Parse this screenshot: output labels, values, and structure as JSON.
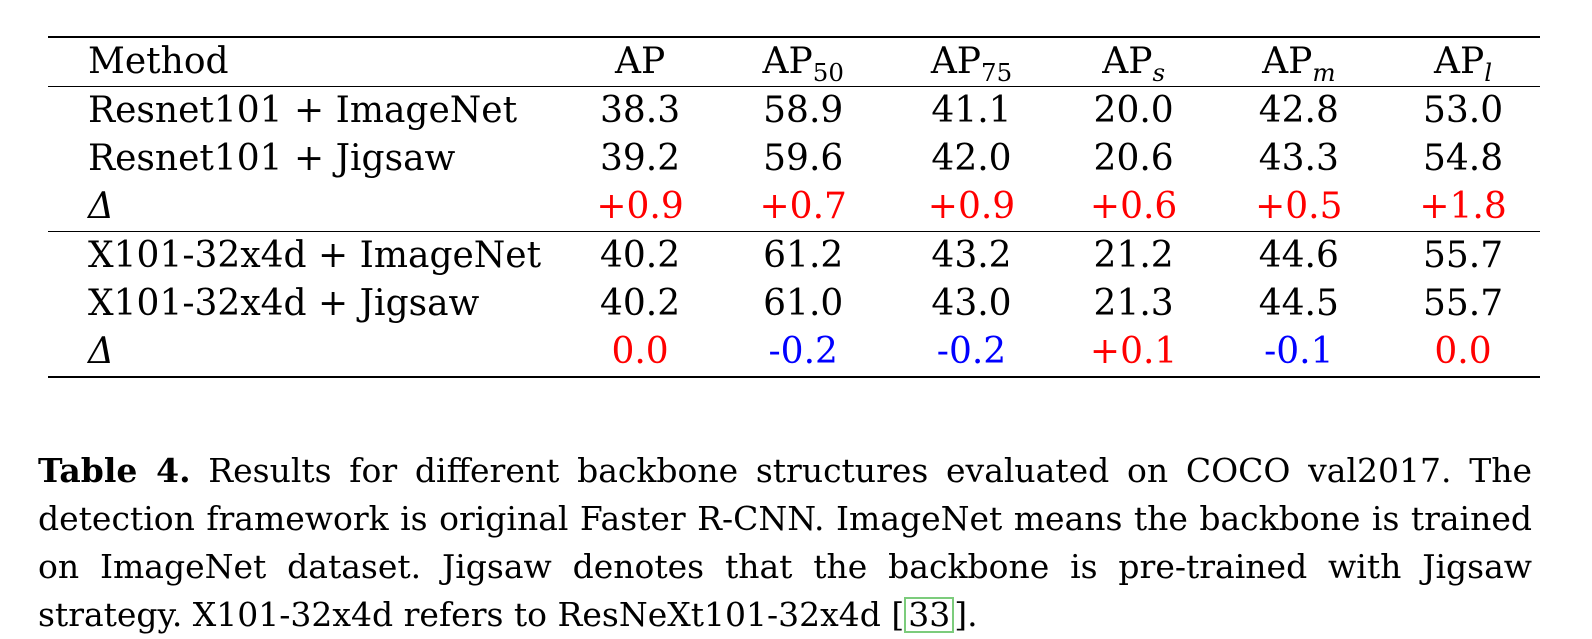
{
  "table": {
    "headers": {
      "method": "Method",
      "ap": "AP",
      "ap50_base": "AP",
      "ap50_sub": "50",
      "ap75_base": "AP",
      "ap75_sub": "75",
      "aps_base": "AP",
      "aps_sub": "s",
      "apm_base": "AP",
      "apm_sub": "m",
      "apl_base": "AP",
      "apl_sub": "l"
    },
    "rows": [
      {
        "method": "Resnet101 + ImageNet",
        "ap": "38.3",
        "ap50": "58.9",
        "ap75": "41.1",
        "aps": "20.0",
        "apm": "42.8",
        "apl": "53.0"
      },
      {
        "method": "Resnet101 + Jigsaw",
        "ap": "39.2",
        "ap50": "59.6",
        "ap75": "42.0",
        "aps": "20.6",
        "apm": "43.3",
        "apl": "54.8"
      },
      {
        "method": "Δ",
        "ap": "+0.9",
        "ap50": "+0.7",
        "ap75": "+0.9",
        "aps": "+0.6",
        "apm": "+0.5",
        "apl": "+1.8"
      },
      {
        "method": "X101-32x4d + ImageNet",
        "ap": "40.2",
        "ap50": "61.2",
        "ap75": "43.2",
        "aps": "21.2",
        "apm": "44.6",
        "apl": "55.7"
      },
      {
        "method": "X101-32x4d + Jigsaw",
        "ap": "40.2",
        "ap50": "61.0",
        "ap75": "43.0",
        "aps": "21.3",
        "apm": "44.5",
        "apl": "55.7"
      },
      {
        "method": "Δ",
        "ap": "0.0",
        "ap50": "-0.2",
        "ap75": "-0.2",
        "aps": "+0.1",
        "apm": "-0.1",
        "apl": "0.0"
      }
    ]
  },
  "colors": {
    "positive": "#ff0000",
    "negative": "#0000ff",
    "citation_border": "#7ccc7c"
  },
  "caption": {
    "label": "Table 4.",
    "text_before_cite": " Results for different backbone structures evaluated on COCO val2017. The detection framework is original Faster R-CNN. ImageNet means the backbone is trained on ImageNet dataset. Jigsaw denotes that the backbone is pre-trained with Jigsaw strategy. X101-32x4d refers to ResNeXt101-32x4d [",
    "citation": "33",
    "text_after_cite": "]."
  }
}
